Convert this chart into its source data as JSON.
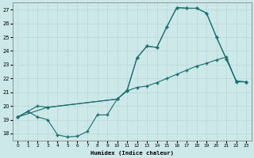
{
  "xlabel": "Humidex (Indice chaleur)",
  "bg_color": "#cce8e8",
  "line_color": "#1a6e6e",
  "grid_color": "#b8d8d8",
  "xlim": [
    -0.5,
    23.5
  ],
  "ylim": [
    17.5,
    27.5
  ],
  "xticks": [
    0,
    1,
    2,
    3,
    4,
    5,
    6,
    7,
    8,
    9,
    10,
    11,
    12,
    13,
    14,
    15,
    16,
    17,
    18,
    19,
    20,
    21,
    22,
    23
  ],
  "yticks": [
    18,
    19,
    20,
    21,
    22,
    23,
    24,
    25,
    26,
    27
  ],
  "line1_x": [
    0,
    1,
    2,
    3,
    4,
    5,
    6,
    7,
    8,
    9,
    10,
    11,
    12,
    13,
    14,
    15,
    16,
    17,
    18,
    19,
    20,
    21,
    22,
    23
  ],
  "line1_y": [
    19.2,
    19.6,
    19.2,
    19.0,
    17.9,
    17.75,
    17.8,
    18.15,
    19.35,
    19.35,
    20.5,
    21.15,
    23.5,
    24.35,
    24.25,
    25.75,
    27.15,
    27.1,
    27.1,
    26.75,
    25.0,
    23.4,
    21.8,
    21.75
  ],
  "line2_x": [
    0,
    1,
    2,
    3,
    10,
    11,
    12,
    13,
    14,
    15,
    16,
    17,
    18,
    19,
    20,
    21,
    22,
    23
  ],
  "line2_y": [
    19.2,
    19.6,
    20.0,
    19.9,
    20.5,
    21.1,
    21.35,
    21.45,
    21.7,
    22.0,
    22.3,
    22.6,
    22.9,
    23.1,
    23.35,
    23.55,
    21.75,
    21.75
  ],
  "line3_x": [
    0,
    3,
    10,
    11,
    12,
    13,
    14,
    15,
    16,
    17,
    18,
    19,
    20,
    21,
    22,
    23
  ],
  "line3_y": [
    19.2,
    19.9,
    20.5,
    21.1,
    23.5,
    24.35,
    24.25,
    25.75,
    27.15,
    27.1,
    27.1,
    26.75,
    25.0,
    23.4,
    21.8,
    21.75
  ]
}
